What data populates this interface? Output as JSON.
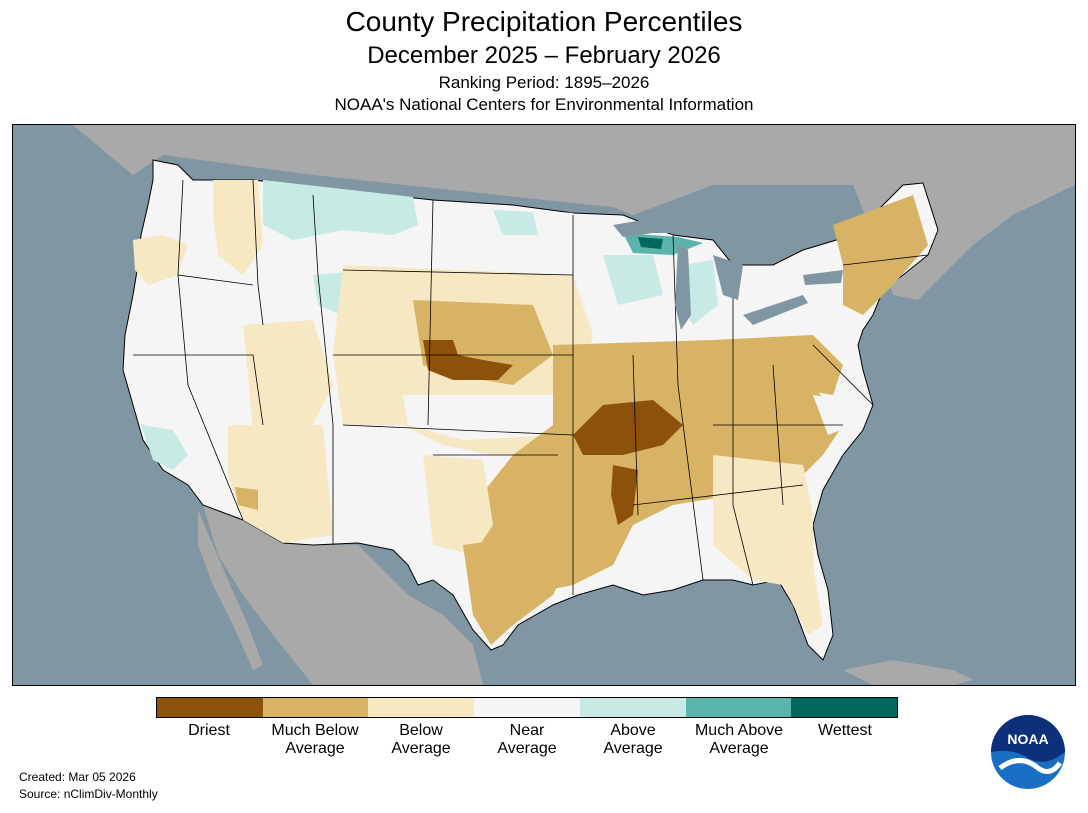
{
  "header": {
    "title": "County Precipitation Percentiles",
    "subtitle": "December 2025 – February 2026",
    "ranking_period": "Ranking Period: 1895–2026",
    "agency": "NOAA's National Centers for Environmental Information"
  },
  "legend": {
    "categories": [
      {
        "label": "Driest",
        "color": "#8c510a"
      },
      {
        "label": "Much Below\nAverage",
        "color": "#d8b365"
      },
      {
        "label": "Below\nAverage",
        "color": "#f6e8c3"
      },
      {
        "label": "Near\nAverage",
        "color": "#f5f5f5"
      },
      {
        "label": "Above\nAverage",
        "color": "#c7eae5"
      },
      {
        "label": "Much Above\nAverage",
        "color": "#5ab4ac"
      },
      {
        "label": "Wettest",
        "color": "#01665e"
      }
    ]
  },
  "footer": {
    "created": "Created: Mar 05 2026",
    "source": "Source: nClimDiv-Monthly"
  },
  "logo": {
    "text": "NOAA",
    "icon": "noaa-logo-icon"
  },
  "colors": {
    "ocean": "#8096a3",
    "land_outside": "#a9a9a9",
    "border": "#000000"
  }
}
